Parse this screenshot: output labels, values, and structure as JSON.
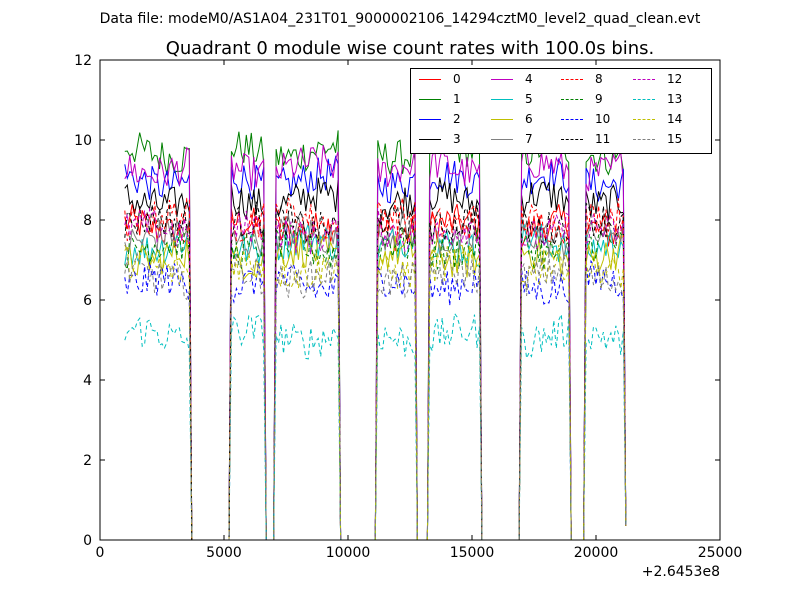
{
  "header": {
    "file_line": "Data file: modeM0/AS1A04_231T01_9000002106_14294cztM0_level2_quad_clean.evt"
  },
  "chart_data": {
    "type": "line",
    "title": "Quadrant 0 module wise count rates with 100.0s bins.",
    "xlabel": "",
    "ylabel": "",
    "x_offset_label": "+2.6453e8",
    "xlim": [
      0,
      25000
    ],
    "ylim": [
      0,
      12
    ],
    "xticks": [
      "0",
      "5000",
      "10000",
      "15000",
      "20000",
      "25000"
    ],
    "yticks": [
      "0",
      "2",
      "4",
      "6",
      "8",
      "10",
      "12"
    ],
    "grid": false,
    "legend_position": "top-right",
    "legend_columns": 4,
    "segments": [
      [
        1000,
        3600
      ],
      [
        5300,
        6600
      ],
      [
        7100,
        9600
      ],
      [
        11200,
        12700
      ],
      [
        13300,
        15300
      ],
      [
        17000,
        18900
      ],
      [
        19600,
        21100
      ]
    ],
    "series": [
      {
        "name": "0",
        "color": "#ff0000",
        "dash": "solid",
        "level": 7.8
      },
      {
        "name": "1",
        "color": "#008000",
        "dash": "solid",
        "level": 9.7
      },
      {
        "name": "2",
        "color": "#0000ff",
        "dash": "solid",
        "level": 9.0
      },
      {
        "name": "3",
        "color": "#000000",
        "dash": "solid",
        "level": 8.5
      },
      {
        "name": "4",
        "color": "#bf00bf",
        "dash": "solid",
        "level": 9.3
      },
      {
        "name": "5",
        "color": "#00bfbf",
        "dash": "solid",
        "level": 7.4
      },
      {
        "name": "6",
        "color": "#bfbf00",
        "dash": "solid",
        "level": 7.1
      },
      {
        "name": "7",
        "color": "#808080",
        "dash": "solid",
        "level": 7.6
      },
      {
        "name": "8",
        "color": "#ff0000",
        "dash": "dashed",
        "level": 8.0
      },
      {
        "name": "9",
        "color": "#008000",
        "dash": "dashed",
        "level": 7.3
      },
      {
        "name": "10",
        "color": "#0000ff",
        "dash": "dashed",
        "level": 6.4
      },
      {
        "name": "11",
        "color": "#000000",
        "dash": "dashed",
        "level": 7.9
      },
      {
        "name": "12",
        "color": "#bf00bf",
        "dash": "dashed",
        "level": 7.7
      },
      {
        "name": "13",
        "color": "#00bfbf",
        "dash": "dashed",
        "level": 5.1
      },
      {
        "name": "14",
        "color": "#bfbf00",
        "dash": "dashed",
        "level": 6.8
      },
      {
        "name": "15",
        "color": "#808080",
        "dash": "dashed",
        "level": 6.6
      }
    ]
  }
}
